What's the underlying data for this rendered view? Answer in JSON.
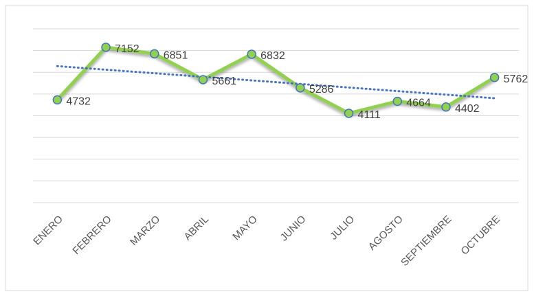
{
  "chart_data": {
    "type": "line",
    "categories": [
      "ENERO",
      "FEBRERO",
      "MARZO",
      "ABRIL",
      "MAYO",
      "JUNIO",
      "JULIO",
      "AGOSTO",
      "SEPTIEMBRE",
      "OCTUBRE"
    ],
    "values": [
      4732,
      7152,
      6851,
      5661,
      6832,
      5286,
      4111,
      4664,
      4402,
      5762
    ],
    "color": "#92d050",
    "marker_edge_color": "#4472c4",
    "ylim": [
      0,
      8000
    ],
    "yticks": [
      0,
      1000,
      2000,
      3000,
      4000,
      5000,
      6000,
      7000,
      8000
    ],
    "ytick_labels": false,
    "grid": true,
    "trendline": "linear",
    "trendline_color": "#4472c4"
  }
}
